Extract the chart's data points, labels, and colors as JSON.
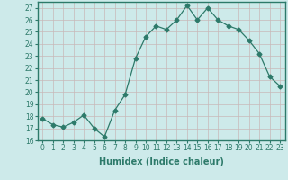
{
  "x": [
    0,
    1,
    2,
    3,
    4,
    5,
    6,
    7,
    8,
    9,
    10,
    11,
    12,
    13,
    14,
    15,
    16,
    17,
    18,
    19,
    20,
    21,
    22,
    23
  ],
  "y": [
    17.8,
    17.3,
    17.1,
    17.5,
    18.1,
    17.0,
    16.3,
    18.5,
    19.8,
    22.8,
    24.6,
    25.5,
    25.2,
    26.0,
    27.2,
    26.0,
    27.0,
    26.0,
    25.5,
    25.2,
    24.3,
    23.2,
    21.3,
    20.5
  ],
  "line_color": "#2d7a6a",
  "marker": "D",
  "marker_size": 2.5,
  "bg_color": "#cdeaea",
  "grid_color": "#c8b8b8",
  "xlabel": "Humidex (Indice chaleur)",
  "ylabel": "",
  "title": "",
  "xlim": [
    -0.5,
    23.5
  ],
  "ylim": [
    16,
    27.5
  ],
  "yticks": [
    16,
    17,
    18,
    19,
    20,
    21,
    22,
    23,
    24,
    25,
    26,
    27
  ],
  "xticks": [
    0,
    1,
    2,
    3,
    4,
    5,
    6,
    7,
    8,
    9,
    10,
    11,
    12,
    13,
    14,
    15,
    16,
    17,
    18,
    19,
    20,
    21,
    22,
    23
  ],
  "tick_fontsize": 5.5,
  "xlabel_fontsize": 7.0,
  "tick_color": "#2d7a6a",
  "spine_color": "#2d7a6a"
}
